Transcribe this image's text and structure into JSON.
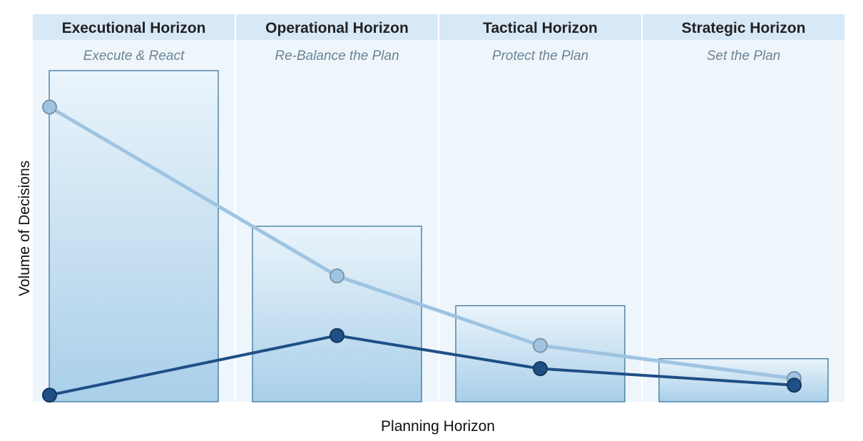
{
  "chart_data": {
    "type": "bar",
    "xlabel": "Planning Horizon",
    "ylabel": "Volume of Decisions",
    "categories": [
      "Executional Horizon",
      "Operational Horizon",
      "Tactical Horizon",
      "Strategic Horizon"
    ],
    "subtitles": [
      "Execute & React",
      "Re-Balance the Plan",
      "Protect the Plan",
      "Set the Plan"
    ],
    "values": [
      100,
      53,
      29,
      13
    ],
    "ylim": [
      0,
      100
    ],
    "series": [
      {
        "name": "",
        "type": "line",
        "color": "#9fc4e2",
        "values": [
          89,
          38,
          17,
          7
        ]
      },
      {
        "name": "",
        "type": "line",
        "color": "#1e4f86",
        "values": [
          2,
          20,
          10,
          5
        ]
      }
    ],
    "colors": {
      "header_band": "#d7e8f7",
      "column_band": "#eef6fc",
      "bar_top": "#eaf4fb",
      "bar_bottom": "#a9cfe9",
      "bar_border": "#2f6c95"
    },
    "grid": false,
    "legend": "none"
  }
}
